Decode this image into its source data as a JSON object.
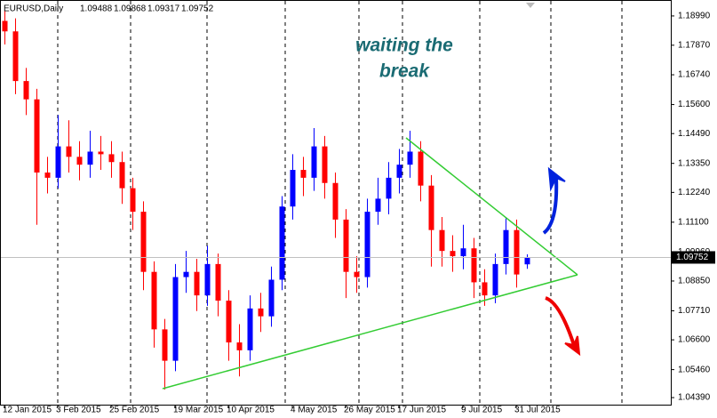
{
  "chart_data": {
    "type": "candlestick",
    "title": "EURUSD,Daily",
    "categories": [
      "12 Jan 2015",
      null,
      null,
      null,
      null,
      "3 Feb 2015",
      null,
      null,
      null,
      null,
      "25 Feb 2015",
      null,
      null,
      null,
      null,
      null,
      "19 Mar 2015",
      null,
      null,
      null,
      null,
      "10 Apr 2015",
      null,
      null,
      null,
      null,
      null,
      "4 May 2015",
      null,
      null,
      null,
      null,
      "26 May 2015",
      null,
      null,
      null,
      null,
      "17 Jun 2015",
      null,
      null,
      null,
      null,
      null,
      "9 Jul 2015",
      null,
      null,
      null,
      null,
      "31 Jul 2015",
      null
    ],
    "open": [
      1.188,
      1.184,
      1.165,
      1.158,
      1.13,
      1.128,
      1.14,
      1.136,
      1.133,
      1.138,
      1.137,
      1.134,
      1.124,
      1.115,
      1.092,
      1.07,
      1.058,
      1.09,
      1.092,
      1.083,
      1.095,
      1.081,
      1.065,
      1.062,
      1.078,
      1.075,
      1.089,
      1.117,
      1.131,
      1.128,
      1.14,
      1.126,
      1.112,
      1.092,
      1.09,
      1.115,
      1.12,
      1.128,
      1.133,
      1.138,
      1.125,
      1.108,
      1.1,
      1.098,
      1.101,
      1.088,
      1.083,
      1.095,
      1.108,
      1.09488
    ],
    "high": [
      1.192,
      1.189,
      1.17,
      1.162,
      1.136,
      1.152,
      1.15,
      1.142,
      1.146,
      1.144,
      1.142,
      1.138,
      1.128,
      1.119,
      1.096,
      1.074,
      1.095,
      1.1,
      1.097,
      1.102,
      1.099,
      1.085,
      1.072,
      1.083,
      1.084,
      1.094,
      1.121,
      1.137,
      1.136,
      1.147,
      1.144,
      1.13,
      1.116,
      1.098,
      1.12,
      1.128,
      1.134,
      1.139,
      1.146,
      1.142,
      1.129,
      1.113,
      1.106,
      1.11,
      1.105,
      1.093,
      1.099,
      1.113,
      1.112,
      1.09868
    ],
    "low": [
      1.179,
      1.16,
      1.152,
      1.11,
      1.122,
      1.124,
      1.13,
      1.127,
      1.128,
      1.131,
      1.128,
      1.118,
      1.108,
      1.085,
      1.063,
      1.047,
      1.054,
      1.084,
      1.077,
      1.079,
      1.075,
      1.058,
      1.052,
      1.058,
      1.069,
      1.071,
      1.085,
      1.112,
      1.121,
      1.123,
      1.12,
      1.105,
      1.082,
      1.084,
      1.086,
      1.11,
      1.114,
      1.122,
      1.128,
      1.119,
      1.094,
      1.094,
      1.092,
      1.093,
      1.082,
      1.079,
      1.08,
      1.091,
      1.086,
      1.09317
    ],
    "close": [
      1.184,
      1.165,
      1.158,
      1.13,
      1.128,
      1.14,
      1.136,
      1.133,
      1.138,
      1.137,
      1.134,
      1.124,
      1.115,
      1.092,
      1.07,
      1.058,
      1.09,
      1.092,
      1.083,
      1.095,
      1.081,
      1.065,
      1.062,
      1.078,
      1.075,
      1.089,
      1.117,
      1.131,
      1.128,
      1.14,
      1.126,
      1.112,
      1.092,
      1.09,
      1.115,
      1.12,
      1.128,
      1.133,
      1.138,
      1.125,
      1.108,
      1.1,
      1.098,
      1.101,
      1.088,
      1.083,
      1.095,
      1.108,
      1.091,
      1.09752
    ],
    "up_color": "#0000ff",
    "down_color": "#ff0000",
    "ylim": [
      1.0412,
      1.196
    ],
    "yticks": [
      {
        "value": 1.1899,
        "label": "1.18990"
      },
      {
        "value": 1.1787,
        "label": "1.17870"
      },
      {
        "value": 1.1674,
        "label": "1.16740"
      },
      {
        "value": 1.156,
        "label": "1.15600"
      },
      {
        "value": 1.1449,
        "label": "1.14490"
      },
      {
        "value": 1.1335,
        "label": "1.13350"
      },
      {
        "value": 1.1224,
        "label": "1.12240"
      },
      {
        "value": 1.111,
        "label": "1.11100"
      },
      {
        "value": 1.0996,
        "label": "1.09960"
      },
      {
        "value": 1.0885,
        "label": "1.08850"
      },
      {
        "value": 1.0771,
        "label": "1.07710"
      },
      {
        "value": 1.066,
        "label": "1.06600"
      },
      {
        "value": 1.0546,
        "label": "1.05460"
      },
      {
        "value": 1.0439,
        "label": "1.04390"
      }
    ],
    "annotations": [
      "waiting the",
      "break"
    ]
  }
}
